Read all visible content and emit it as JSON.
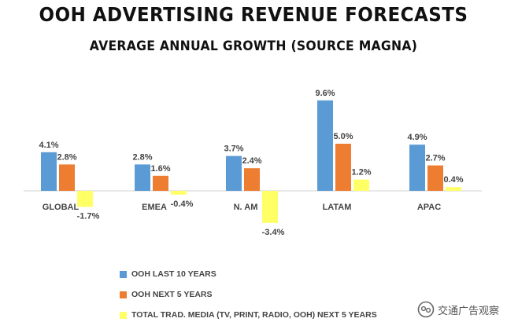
{
  "title": "OOH ADVERTISING REVENUE FORECASTS",
  "subtitle": "AVERAGE ANNUAL GROWTH (SOURCE MAGNA)",
  "watermark": "交通广告观察",
  "chart_data": {
    "type": "bar",
    "title": "OOH ADVERTISING REVENUE FORECASTS",
    "subtitle": "AVERAGE ANNUAL GROWTH (SOURCE MAGNA)",
    "xlabel": "",
    "ylabel": "",
    "ylim": [
      -4,
      10
    ],
    "grid": false,
    "legend_position": "bottom-left",
    "categories": [
      "GLOBAL",
      "EMEA",
      "N. AM",
      "LATAM",
      "APAC"
    ],
    "series": [
      {
        "name": "OOH LAST 10 YEARS",
        "color": "#5B9BD5",
        "values": [
          4.1,
          2.8,
          3.7,
          9.6,
          4.9
        ],
        "labels": [
          "4.1%",
          "2.8%",
          "3.7%",
          "9.6%",
          "4.9%"
        ]
      },
      {
        "name": "OOH NEXT 5 YEARS",
        "color": "#ED7D31",
        "values": [
          2.8,
          1.6,
          2.4,
          5.0,
          2.7
        ],
        "labels": [
          "2.8%",
          "1.6%",
          "2.4%",
          "5.0%",
          "2.7%"
        ]
      },
      {
        "name": "TOTAL TRAD. MEDIA (TV, PRINT, RADIO, OOH) NEXT 5 YEARS",
        "color": "#FFFF66",
        "values": [
          -1.7,
          -0.4,
          -3.4,
          1.2,
          0.4
        ],
        "labels": [
          "-1.7%",
          "-0.4%",
          "-3.4%",
          "1.2%",
          "0.4%"
        ]
      }
    ]
  }
}
